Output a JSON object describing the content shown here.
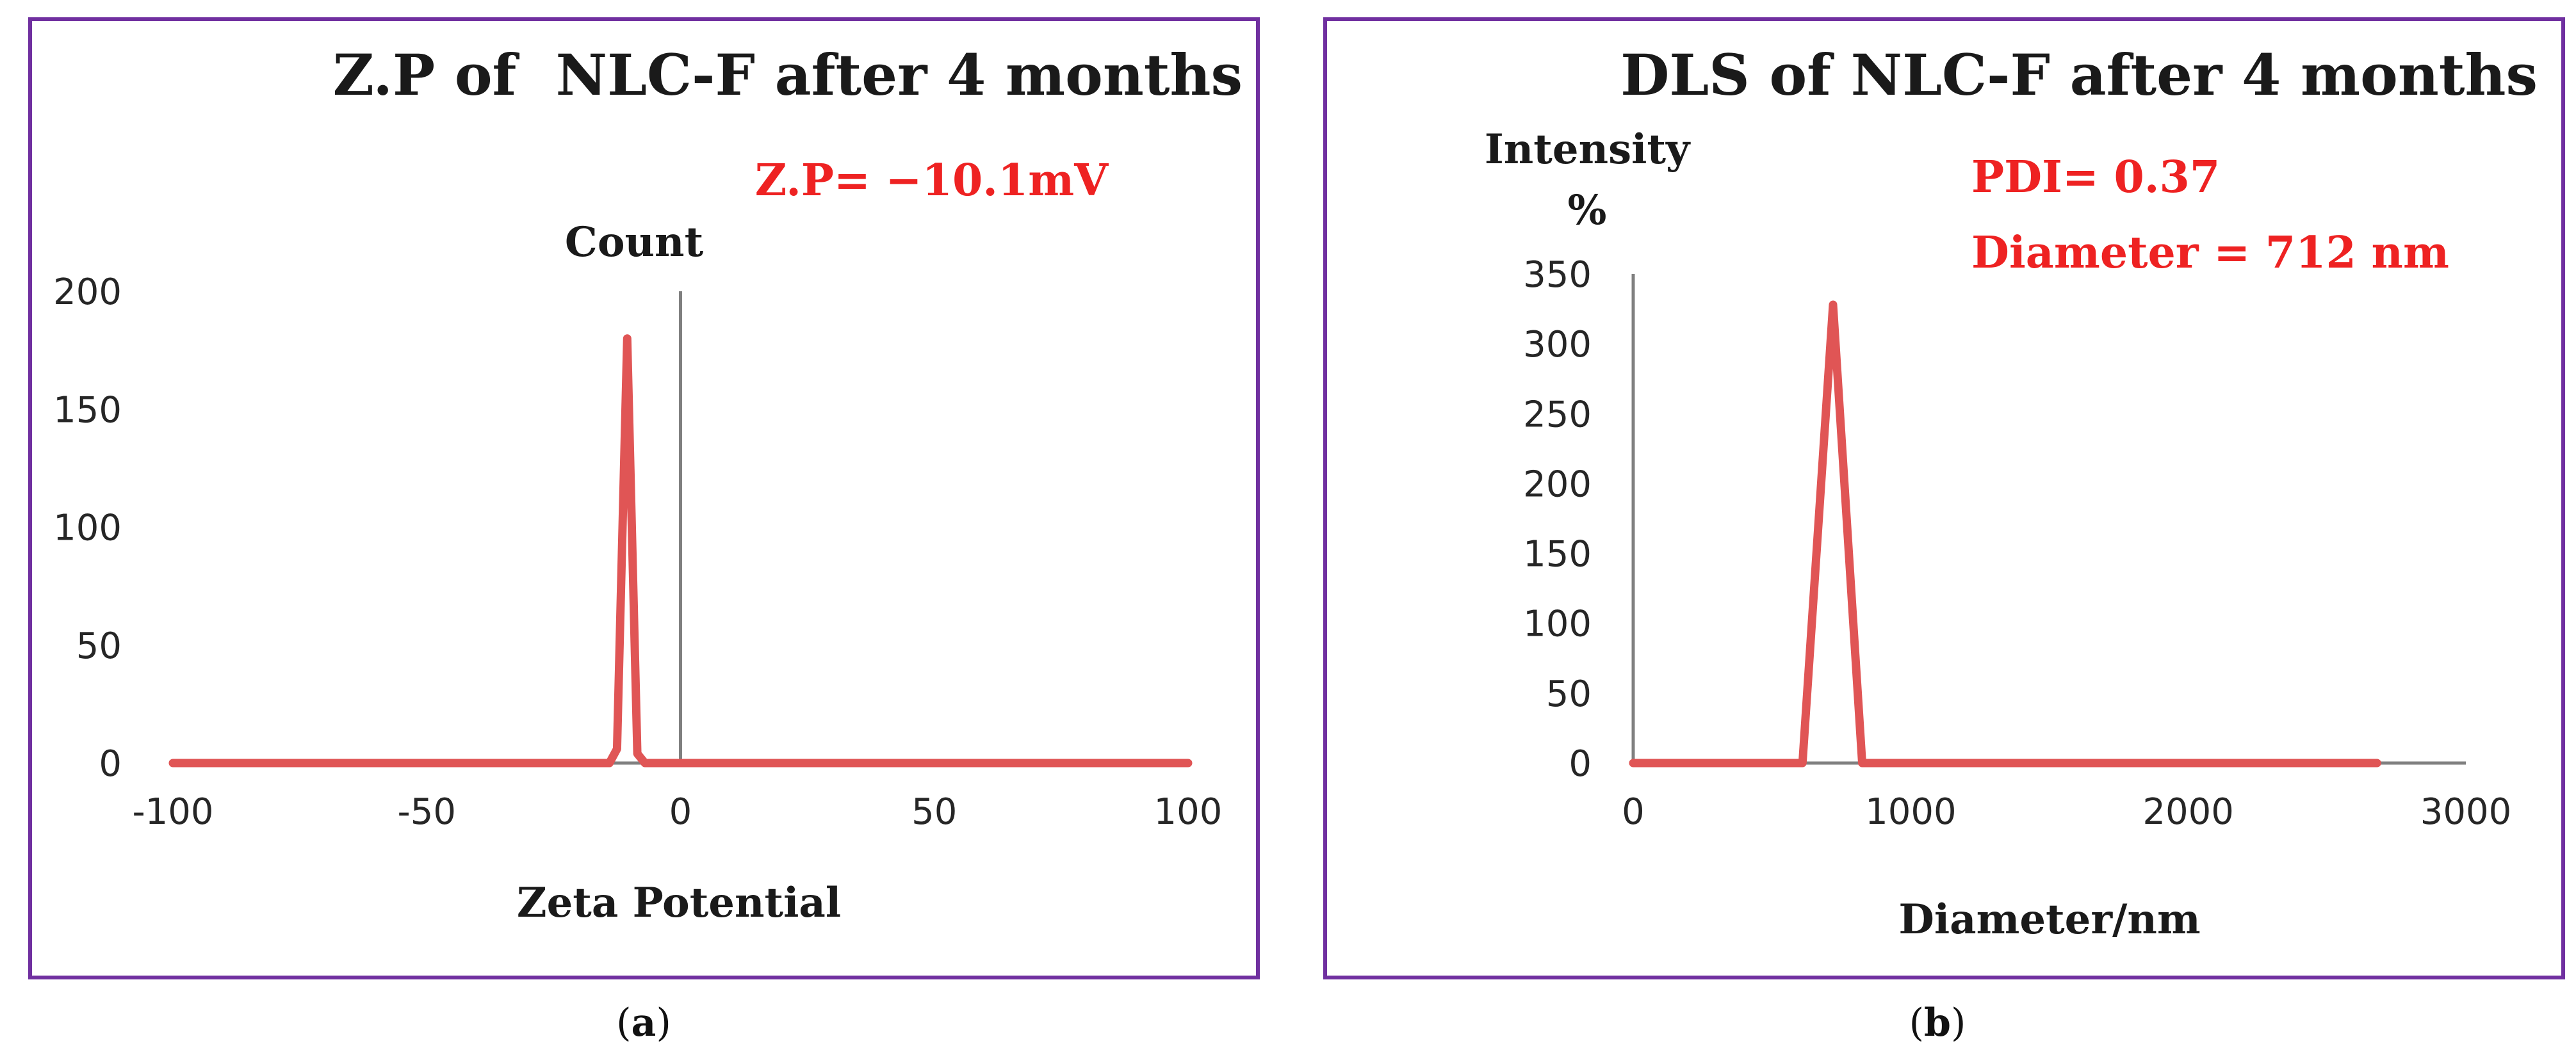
{
  "chart_data": [
    {
      "type": "line",
      "title": "Z.P of  NLC-F after 4 months",
      "xlabel": "Zeta Potential",
      "ylabel": "Count",
      "xlim": [
        -100,
        100
      ],
      "ylim": [
        0,
        200
      ],
      "xticks": [
        -100,
        -50,
        0,
        50,
        100
      ],
      "yticks": [
        0,
        50,
        100,
        150,
        200
      ],
      "annotations": [
        "Z.P= −10.1mV"
      ],
      "series": [
        {
          "name": "Count",
          "x": [
            -100,
            -14,
            -12.5,
            -10.5,
            -8.5,
            -7,
            100
          ],
          "y": [
            0,
            0,
            6,
            180,
            4,
            0,
            0
          ]
        }
      ],
      "caption_letter": "a"
    },
    {
      "type": "line",
      "title": "DLS of NLC-F after 4 months",
      "xlabel": "Diameter/nm",
      "ylabel": [
        "Intensity",
        "%"
      ],
      "xlim": [
        0,
        3000
      ],
      "ylim": [
        0,
        350
      ],
      "xticks": [
        0,
        1000,
        2000,
        3000
      ],
      "yticks": [
        0,
        50,
        100,
        150,
        200,
        250,
        300,
        350
      ],
      "annotations": [
        "PDI= 0.37",
        "Diameter = 712 nm"
      ],
      "series": [
        {
          "name": "Intensity %",
          "x": [
            0,
            610,
            720,
            825,
            2680
          ],
          "y": [
            0,
            0,
            328,
            0,
            0
          ]
        }
      ],
      "caption_letter": "b"
    }
  ],
  "colors": {
    "frame": "#7030a0",
    "axis": "#808080",
    "series": "#e05555",
    "annotation": "#ee2222"
  }
}
